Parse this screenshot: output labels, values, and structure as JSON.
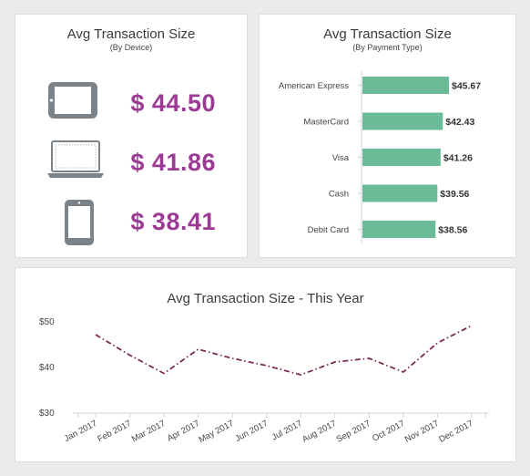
{
  "device_panel": {
    "title": "Avg Transaction Size",
    "subtitle": "(By Device)",
    "items": [
      {
        "icon": "tablet-icon",
        "value": "$ 44.50"
      },
      {
        "icon": "laptop-icon",
        "value": "$ 41.86"
      },
      {
        "icon": "smartphone-icon",
        "value": "$ 38.41"
      }
    ],
    "value_color": "#9b3b94",
    "icon_color": "#7b8288"
  },
  "chart_data": [
    {
      "type": "bar",
      "orientation": "horizontal",
      "title": "Avg Transaction Size",
      "subtitle": "(By Payment Type)",
      "categories": [
        "American Express",
        "MasterCard",
        "Visa",
        "Cash",
        "Debit Card"
      ],
      "values": [
        45.67,
        42.43,
        41.26,
        39.56,
        38.56
      ],
      "value_labels": [
        "$45.67",
        "$42.43",
        "$41.26",
        "$39.56",
        "$38.56"
      ],
      "bar_color": "#6cbb98",
      "xlim": [
        0,
        52
      ]
    },
    {
      "type": "line",
      "title": "Avg Transaction Size - This Year",
      "x": [
        "Jan 2017",
        "Feb 2017",
        "Mar 2017",
        "Apr 2017",
        "May 2017",
        "Jun 2017",
        "Jul 2017",
        "Aug 2017",
        "Sep 2017",
        "Oct 2017",
        "Nov 2017",
        "Dec 2017"
      ],
      "values": [
        47,
        42.5,
        38.5,
        43.8,
        41.8,
        40.2,
        38.2,
        41,
        41.8,
        38.8,
        45.2,
        49
      ],
      "yticks": [
        "$50",
        "$40",
        "$30"
      ],
      "ytick_values": [
        50,
        40,
        30
      ],
      "ylim": [
        30,
        50
      ],
      "line_color": "#7a2a55",
      "line_style": "dash-dot",
      "grid": false
    }
  ]
}
